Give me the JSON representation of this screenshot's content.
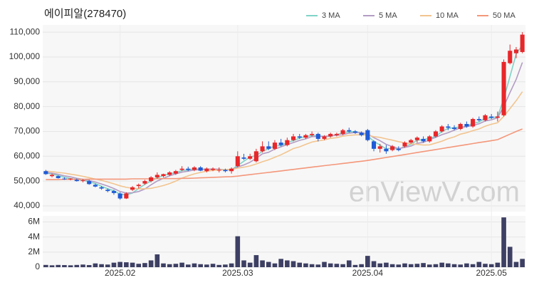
{
  "chart_data": {
    "type": "candlestick",
    "title": "에이피알(278470)",
    "watermark": "enViewV.com",
    "categories": [
      null,
      null,
      null,
      null,
      null,
      null,
      null,
      null,
      null,
      null,
      null,
      null,
      "2025.02",
      null,
      null,
      null,
      null,
      null,
      null,
      null,
      null,
      null,
      null,
      null,
      null,
      null,
      null,
      null,
      null,
      null,
      null,
      "2025.03",
      null,
      null,
      null,
      null,
      null,
      null,
      null,
      null,
      null,
      null,
      null,
      null,
      null,
      null,
      null,
      null,
      null,
      null,
      null,
      null,
      "2025.04",
      null,
      null,
      null,
      null,
      null,
      null,
      null,
      null,
      null,
      null,
      null,
      null,
      null,
      null,
      null,
      null,
      null,
      null,
      null,
      "2025.05",
      null,
      null,
      null,
      null,
      null
    ],
    "open": [
      54000,
      52000,
      52000,
      51000,
      50800,
      50500,
      50000,
      50000,
      48500,
      47500,
      46500,
      46000,
      45000,
      43000,
      46500,
      48000,
      49000,
      50000,
      51500,
      52000,
      52500,
      53000,
      54500,
      55000,
      54500,
      55500,
      54000,
      54500,
      54500,
      54500,
      54000,
      56000,
      59500,
      59000,
      58000,
      62000,
      64000,
      63000,
      65500,
      64500,
      66500,
      68000,
      67500,
      68500,
      69000,
      67000,
      68000,
      68500,
      69000,
      70500,
      70000,
      69500,
      70500,
      66000,
      63000,
      63000,
      62500,
      63000,
      64000,
      65500,
      66500,
      67000,
      66000,
      68000,
      70000,
      72000,
      71500,
      71000,
      73000,
      72000,
      75000,
      74500,
      76000,
      75500,
      76500,
      97500,
      101500,
      102000
    ],
    "high": [
      54500,
      53000,
      52300,
      51500,
      51200,
      51000,
      50800,
      50500,
      49000,
      48000,
      47000,
      46500,
      45500,
      45500,
      48000,
      49000,
      50500,
      52000,
      53500,
      53000,
      54000,
      54500,
      56000,
      55800,
      56000,
      56000,
      55500,
      55500,
      55500,
      55000,
      55500,
      62000,
      61000,
      61000,
      63000,
      66000,
      66000,
      66500,
      67000,
      67500,
      69000,
      69000,
      69000,
      70000,
      69500,
      68500,
      69500,
      69500,
      71000,
      71500,
      70500,
      70000,
      71000,
      66500,
      65000,
      64500,
      64500,
      64000,
      66000,
      67000,
      68000,
      68000,
      68500,
      70500,
      72500,
      73000,
      72500,
      73500,
      74000,
      75500,
      76000,
      77000,
      77000,
      78000,
      99000,
      105000,
      104000,
      110000
    ],
    "low": [
      52500,
      51500,
      51000,
      50500,
      50300,
      49800,
      49500,
      48500,
      47500,
      46500,
      45500,
      44500,
      42500,
      42800,
      46000,
      47000,
      48500,
      49500,
      51000,
      51500,
      52000,
      52500,
      54000,
      54000,
      54000,
      54000,
      53500,
      54000,
      53500,
      53500,
      53000,
      55500,
      58500,
      58500,
      57500,
      61500,
      62500,
      62500,
      64000,
      64000,
      66000,
      67000,
      67000,
      68000,
      66000,
      66500,
      67500,
      68000,
      68500,
      69500,
      69000,
      68000,
      66000,
      62000,
      61500,
      61000,
      62000,
      62000,
      63500,
      65000,
      65500,
      65500,
      65500,
      67500,
      69500,
      70500,
      70500,
      70500,
      71500,
      71500,
      74000,
      74000,
      75000,
      74000,
      76000,
      97000,
      99500,
      101500
    ],
    "close": [
      52800,
      52500,
      51200,
      50800,
      51000,
      50000,
      50300,
      48800,
      47800,
      47000,
      46000,
      45200,
      43000,
      45000,
      47500,
      48500,
      50000,
      51500,
      52500,
      52800,
      53500,
      54000,
      55000,
      54500,
      55500,
      54200,
      55000,
      55000,
      54500,
      54000,
      55000,
      60000,
      59000,
      60000,
      62000,
      64000,
      63000,
      65500,
      64500,
      66500,
      68000,
      67500,
      68500,
      69000,
      67000,
      68000,
      69000,
      69000,
      70500,
      70000,
      69500,
      68500,
      66500,
      63000,
      64000,
      62000,
      64000,
      62500,
      65500,
      66500,
      67500,
      66000,
      68000,
      70000,
      72000,
      71500,
      71000,
      73000,
      72000,
      75000,
      74500,
      76500,
      75500,
      76000,
      98000,
      102500,
      103000,
      109000
    ],
    "up_color": "#e8272a",
    "down_color": "#1f5bd6",
    "ylim": [
      37700,
      112900
    ],
    "yticks": [
      {
        "value": 40000,
        "label": "40,000"
      },
      {
        "value": 50000,
        "label": "50,000"
      },
      {
        "value": 60000,
        "label": "60,000"
      },
      {
        "value": 70000,
        "label": "70,000"
      },
      {
        "value": 80000,
        "label": "80,000"
      },
      {
        "value": 90000,
        "label": "90,000"
      },
      {
        "value": 100000,
        "label": "100,000"
      },
      {
        "value": 110000,
        "label": "110,000"
      }
    ],
    "grid": true,
    "series": [
      {
        "name": "3 MA",
        "color": "#7fd3c7",
        "values": [
          53200,
          52900,
          52200,
          51500,
          51000,
          50600,
          50400,
          49700,
          49000,
          47900,
          46900,
          46100,
          44700,
          44400,
          45200,
          47000,
          48700,
          50000,
          51300,
          52300,
          52900,
          53400,
          54200,
          54500,
          55000,
          54700,
          54900,
          54700,
          54800,
          54500,
          54500,
          56300,
          58000,
          59700,
          60300,
          62000,
          63000,
          64200,
          64300,
          65500,
          66300,
          67300,
          68000,
          68300,
          68200,
          68000,
          68000,
          68700,
          69500,
          69800,
          70000,
          69300,
          68200,
          66000,
          64500,
          63000,
          63300,
          62800,
          64000,
          64800,
          66500,
          66700,
          67200,
          68000,
          70000,
          71200,
          71500,
          71800,
          72000,
          73300,
          73800,
          75300,
          75500,
          76000,
          83200,
          92200,
          101200,
          104800
        ]
      },
      {
        "name": "5 MA",
        "color": "#b39cc4",
        "values": [
          53500,
          53200,
          52700,
          52100,
          51700,
          51100,
          50700,
          50200,
          49600,
          48800,
          48000,
          47000,
          45800,
          45200,
          45300,
          45800,
          46800,
          48500,
          50000,
          51100,
          52100,
          52900,
          53600,
          54000,
          54500,
          54600,
          54800,
          54800,
          54800,
          54500,
          54500,
          55700,
          56500,
          57600,
          59200,
          61000,
          61600,
          62900,
          63800,
          64700,
          65500,
          66400,
          67000,
          67900,
          68000,
          68000,
          68300,
          68400,
          68700,
          69300,
          69600,
          69500,
          69000,
          67500,
          66300,
          64800,
          63900,
          63100,
          63600,
          64100,
          65200,
          65600,
          66700,
          67600,
          68700,
          69500,
          70500,
          71500,
          71900,
          72500,
          73100,
          74200,
          74700,
          75500,
          80100,
          85700,
          91000,
          97800
        ]
      },
      {
        "name": "10 MA",
        "color": "#f2c48f",
        "values": [
          54000,
          53800,
          53500,
          53200,
          52800,
          52400,
          51900,
          51400,
          50800,
          50300,
          49600,
          48900,
          48100,
          47500,
          47100,
          46900,
          46900,
          47100,
          47600,
          48200,
          49000,
          50000,
          51200,
          52100,
          52900,
          53500,
          54000,
          54300,
          54500,
          54600,
          54700,
          55200,
          55600,
          56100,
          56900,
          57800,
          58600,
          59600,
          60600,
          61800,
          63100,
          63800,
          64800,
          65700,
          66200,
          66600,
          67200,
          67500,
          68100,
          68400,
          68600,
          68700,
          68500,
          67900,
          67600,
          67000,
          66500,
          65900,
          65400,
          65000,
          64800,
          64500,
          64600,
          65300,
          66100,
          67100,
          67800,
          68900,
          69500,
          70300,
          71000,
          72100,
          72900,
          73500,
          76100,
          79200,
          82400,
          86000
        ]
      },
      {
        "name": "50 MA",
        "color": "#f4977a",
        "values": [
          50600,
          50600,
          50600,
          50700,
          50700,
          50700,
          50700,
          50800,
          50800,
          50800,
          50800,
          50800,
          50800,
          50800,
          50900,
          50900,
          50900,
          50900,
          51000,
          51000,
          51000,
          51000,
          51100,
          51100,
          51200,
          51300,
          51400,
          51500,
          51600,
          51700,
          51800,
          52000,
          52300,
          52600,
          52900,
          53200,
          53500,
          53800,
          54100,
          54400,
          54700,
          55000,
          55300,
          55600,
          55900,
          56200,
          56500,
          56800,
          57100,
          57400,
          57700,
          58000,
          58300,
          58700,
          59100,
          59500,
          59900,
          60300,
          60700,
          61100,
          61500,
          61900,
          62300,
          62700,
          63100,
          63500,
          63900,
          64300,
          64700,
          65100,
          65500,
          65900,
          66300,
          66700,
          67800,
          68900,
          70000,
          71000
        ]
      }
    ],
    "volume": {
      "color": "#3d3f63",
      "values": [
        300000,
        250000,
        300000,
        280000,
        250000,
        300000,
        350000,
        280000,
        500000,
        400000,
        350000,
        600000,
        700000,
        650000,
        600000,
        450000,
        550000,
        900000,
        1700000,
        500000,
        400000,
        450000,
        600000,
        350000,
        500000,
        400000,
        350000,
        450000,
        300000,
        350000,
        500000,
        4100000,
        900000,
        600000,
        1600000,
        900000,
        700000,
        500000,
        1100000,
        900000,
        800000,
        600000,
        500000,
        400000,
        350000,
        700000,
        500000,
        450000,
        400000,
        900000,
        300000,
        400000,
        1500000,
        800000,
        500000,
        600000,
        400000,
        350000,
        500000,
        400000,
        450000,
        550000,
        350000,
        400000,
        600000,
        500000,
        400000,
        350000,
        500000,
        400000,
        700000,
        450000,
        400000,
        600000,
        6600000,
        2700000,
        700000,
        1100000
      ],
      "ylim": [
        0,
        6800000
      ],
      "yticks": [
        0,
        {
          "value": 2000000,
          "label": "2M"
        },
        {
          "value": 4000000,
          "label": "4M"
        },
        {
          "value": 6000000,
          "label": "6M"
        }
      ]
    }
  }
}
